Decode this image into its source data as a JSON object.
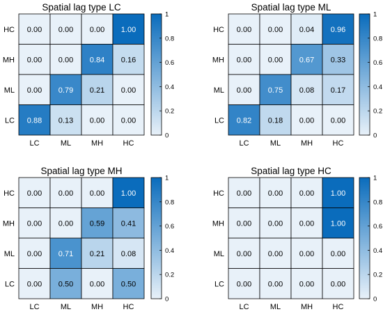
{
  "chart_data": [
    {
      "type": "heatmap",
      "title": "Spatial lag type LC",
      "x_categories": [
        "LC",
        "ML",
        "MH",
        "HC"
      ],
      "y_categories": [
        "HC",
        "MH",
        "ML",
        "LC"
      ],
      "values": [
        [
          0.0,
          0.0,
          0.0,
          1.0
        ],
        [
          0.0,
          0.0,
          0.84,
          0.16
        ],
        [
          0.0,
          0.79,
          0.21,
          0.0
        ],
        [
          0.88,
          0.13,
          0.0,
          0.0
        ]
      ],
      "colorbar": {
        "range": [
          0,
          1
        ],
        "ticks": [
          0,
          0.2,
          0.4,
          0.6,
          0.8,
          1
        ],
        "tick_labels": [
          "0",
          "0.2",
          "0.4",
          "0.6",
          "0.8",
          "1"
        ]
      }
    },
    {
      "type": "heatmap",
      "title": "Spatial lag type ML",
      "x_categories": [
        "LC",
        "ML",
        "MH",
        "HC"
      ],
      "y_categories": [
        "HC",
        "MH",
        "ML",
        "LC"
      ],
      "values": [
        [
          0.0,
          0.0,
          0.04,
          0.96
        ],
        [
          0.0,
          0.0,
          0.67,
          0.33
        ],
        [
          0.0,
          0.75,
          0.08,
          0.17
        ],
        [
          0.82,
          0.18,
          0.0,
          0.0
        ]
      ],
      "colorbar": {
        "range": [
          0,
          1
        ],
        "ticks": [
          0,
          0.2,
          0.4,
          0.6,
          0.8,
          1
        ],
        "tick_labels": [
          "0",
          "0.2",
          "0.4",
          "0.6",
          "0.8",
          "1"
        ]
      }
    },
    {
      "type": "heatmap",
      "title": "Spatial lag type MH",
      "x_categories": [
        "LC",
        "ML",
        "MH",
        "HC"
      ],
      "y_categories": [
        "HC",
        "MH",
        "ML",
        "LC"
      ],
      "values": [
        [
          0.0,
          0.0,
          0.0,
          1.0
        ],
        [
          0.0,
          0.0,
          0.59,
          0.41
        ],
        [
          0.0,
          0.71,
          0.21,
          0.08
        ],
        [
          0.0,
          0.5,
          0.0,
          0.5
        ]
      ],
      "colorbar": {
        "range": [
          0,
          1
        ],
        "ticks": [
          0,
          0.2,
          0.4,
          0.6,
          0.8,
          1
        ],
        "tick_labels": [
          "0",
          "0.2",
          "0.4",
          "0.6",
          "0.8",
          "1"
        ]
      }
    },
    {
      "type": "heatmap",
      "title": "Spatial lag type HC",
      "x_categories": [
        "LC",
        "ML",
        "MH",
        "HC"
      ],
      "y_categories": [
        "HC",
        "MH",
        "ML",
        "LC"
      ],
      "values": [
        [
          0.0,
          0.0,
          0.0,
          1.0
        ],
        [
          0.0,
          0.0,
          0.0,
          1.0
        ],
        [
          0.0,
          0.0,
          0.0,
          0.0
        ],
        [
          0.0,
          0.0,
          0.0,
          0.0
        ]
      ],
      "colorbar": {
        "range": [
          0,
          1
        ],
        "ticks": [
          0,
          0.2,
          0.4,
          0.6,
          0.8,
          1
        ],
        "tick_labels": [
          "0",
          "0.2",
          "0.4",
          "0.6",
          "0.8",
          "1"
        ]
      }
    }
  ],
  "colors": {
    "low": "#e8f1f9",
    "high": "#0a6cbc",
    "grid": "#000000",
    "text": "#000000"
  }
}
